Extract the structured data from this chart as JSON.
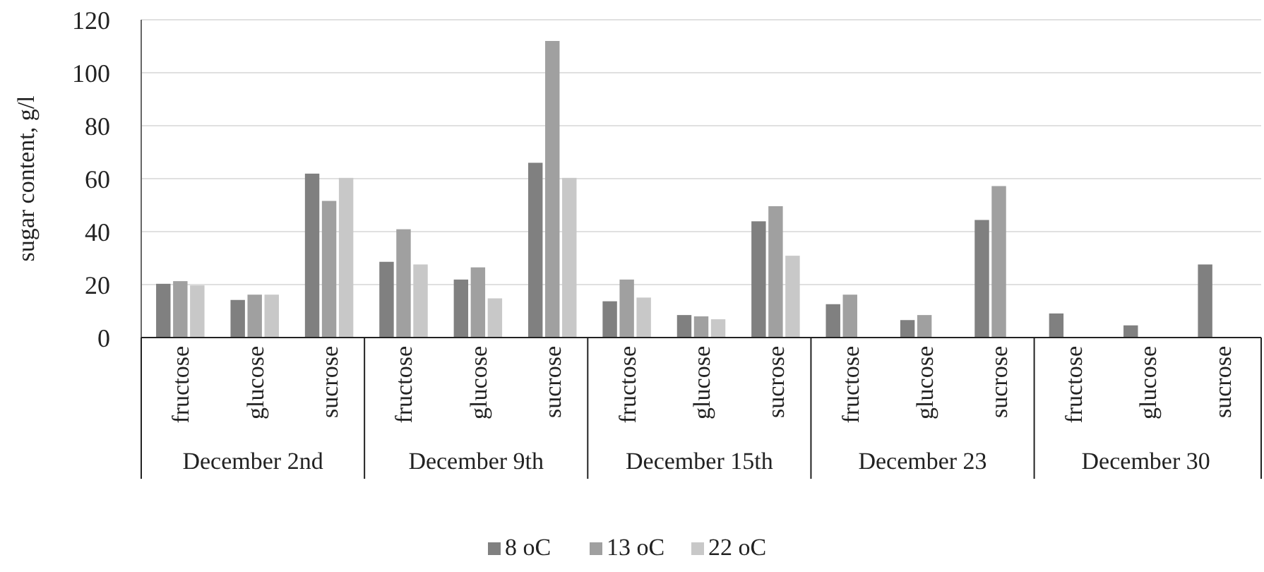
{
  "chart_data": {
    "type": "bar",
    "ylabel": "sugar content, g/l",
    "categories": [
      "fructose",
      "glucose",
      "sucrose",
      "fructose",
      "glucose",
      "sucrose",
      "fructose",
      "glucose",
      "sucrose",
      "fructose",
      "glucose",
      "sucrose",
      "fructose",
      "glucose",
      "sucrose"
    ],
    "series": [
      {
        "name": "8 oC",
        "color": "#808080",
        "values": [
          20.3,
          14.2,
          61.9,
          28.6,
          21.9,
          66,
          13.7,
          8.5,
          43.9,
          12.6,
          6.6,
          44.4,
          9.1,
          4.6,
          27.6
        ]
      },
      {
        "name": "13 oC",
        "color": "#a0a0a0",
        "values": [
          21.3,
          16.2,
          51.6,
          40.9,
          26.5,
          112,
          21.9,
          8,
          49.6,
          16.2,
          8.5,
          57.2,
          null,
          null,
          null
        ]
      },
      {
        "name": "22 oC",
        "color": "#c8c8c8",
        "values": [
          19.7,
          16.2,
          60.3,
          27.6,
          14.8,
          60.3,
          15.1,
          6.9,
          30.9,
          null,
          null,
          null,
          null,
          null,
          null
        ]
      }
    ],
    "annotations": [
      "December 2nd",
      "December 9th",
      "December 15th",
      "December 23",
      "December 30"
    ],
    "ylim": [
      0,
      120
    ],
    "yticks": [
      0,
      20,
      40,
      60,
      80,
      100,
      120
    ],
    "grid": "y",
    "legend": "bottom"
  }
}
